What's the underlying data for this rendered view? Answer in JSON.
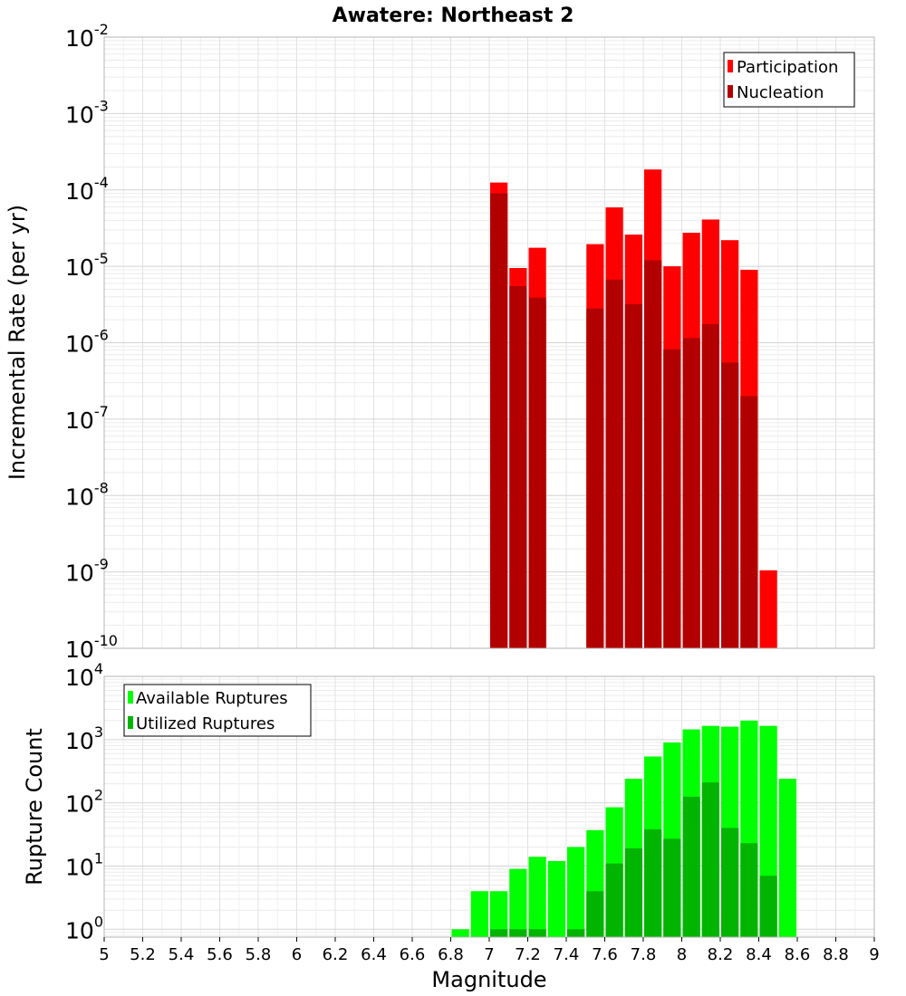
{
  "chart_data": [
    {
      "type": "bar",
      "title": "Awatere: Northeast 2",
      "ylabel": "Incremental Rate (per yr)",
      "xlabel": "",
      "xlim": [
        5,
        9
      ],
      "ylim": [
        1e-10,
        0.01
      ],
      "yscale": "log",
      "ytick_exponents": [
        "-2",
        "-3",
        "-4",
        "-5",
        "-6",
        "-7",
        "-8",
        "-9",
        "-10"
      ],
      "grid": true,
      "legend_position": "top-right",
      "bar_width": 0.1,
      "series": [
        {
          "name": "Participation",
          "color": "#ff0000",
          "x": [
            7.05,
            7.15,
            7.25,
            7.55,
            7.65,
            7.75,
            7.85,
            7.95,
            8.05,
            8.15,
            8.25,
            8.35,
            8.45
          ],
          "values": [
            0.000125,
            9.5e-06,
            1.75e-05,
            1.95e-05,
            5.9e-05,
            2.6e-05,
            0.000185,
            1e-05,
            2.75e-05,
            4.1e-05,
            2.2e-05,
            9e-06,
            1.05e-09
          ]
        },
        {
          "name": "Nucleation",
          "color": "#b20000",
          "x": [
            7.05,
            7.15,
            7.25,
            7.55,
            7.65,
            7.75,
            7.85,
            7.95,
            8.05,
            8.15,
            8.25,
            8.35
          ],
          "values": [
            9e-05,
            5.5e-06,
            3.9e-06,
            2.8e-06,
            6.7e-06,
            3.2e-06,
            1.2e-05,
            8.2e-07,
            1.15e-06,
            1.75e-06,
            5.5e-07,
            2e-07
          ]
        }
      ]
    },
    {
      "type": "bar",
      "title": "",
      "ylabel": "Rupture Count",
      "xlabel": "Magnitude",
      "xlim": [
        5,
        9
      ],
      "ylim": [
        0.75,
        10000
      ],
      "yscale": "log",
      "ytick_exponents": [
        "4",
        "3",
        "2",
        "1",
        "0"
      ],
      "x_ticks": [
        "5",
        "5.2",
        "5.4",
        "5.6",
        "5.8",
        "6",
        "6.2",
        "6.4",
        "6.6",
        "6.8",
        "7",
        "7.2",
        "7.4",
        "7.6",
        "7.8",
        "8",
        "8.2",
        "8.4",
        "8.6",
        "8.8",
        "9"
      ],
      "grid": true,
      "legend_position": "top-left",
      "bar_width": 0.1,
      "series": [
        {
          "name": "Available Ruptures",
          "color": "#00ff00",
          "x": [
            6.85,
            6.95,
            7.05,
            7.15,
            7.25,
            7.35,
            7.45,
            7.55,
            7.65,
            7.75,
            7.85,
            7.95,
            8.05,
            8.15,
            8.25,
            8.35,
            8.45,
            8.55
          ],
          "values": [
            1,
            4,
            4,
            9,
            14,
            12,
            20,
            37,
            85,
            240,
            540,
            900,
            1450,
            1650,
            1600,
            2000,
            1650,
            240
          ]
        },
        {
          "name": "Utilized Ruptures",
          "color": "#00b400",
          "x": [
            7.05,
            7.15,
            7.25,
            7.45,
            7.55,
            7.65,
            7.75,
            7.85,
            7.95,
            8.05,
            8.15,
            8.25,
            8.35,
            8.45
          ],
          "values": [
            1,
            1,
            1,
            1,
            4,
            11,
            19,
            38,
            27,
            125,
            210,
            40,
            23,
            7
          ]
        }
      ]
    }
  ]
}
